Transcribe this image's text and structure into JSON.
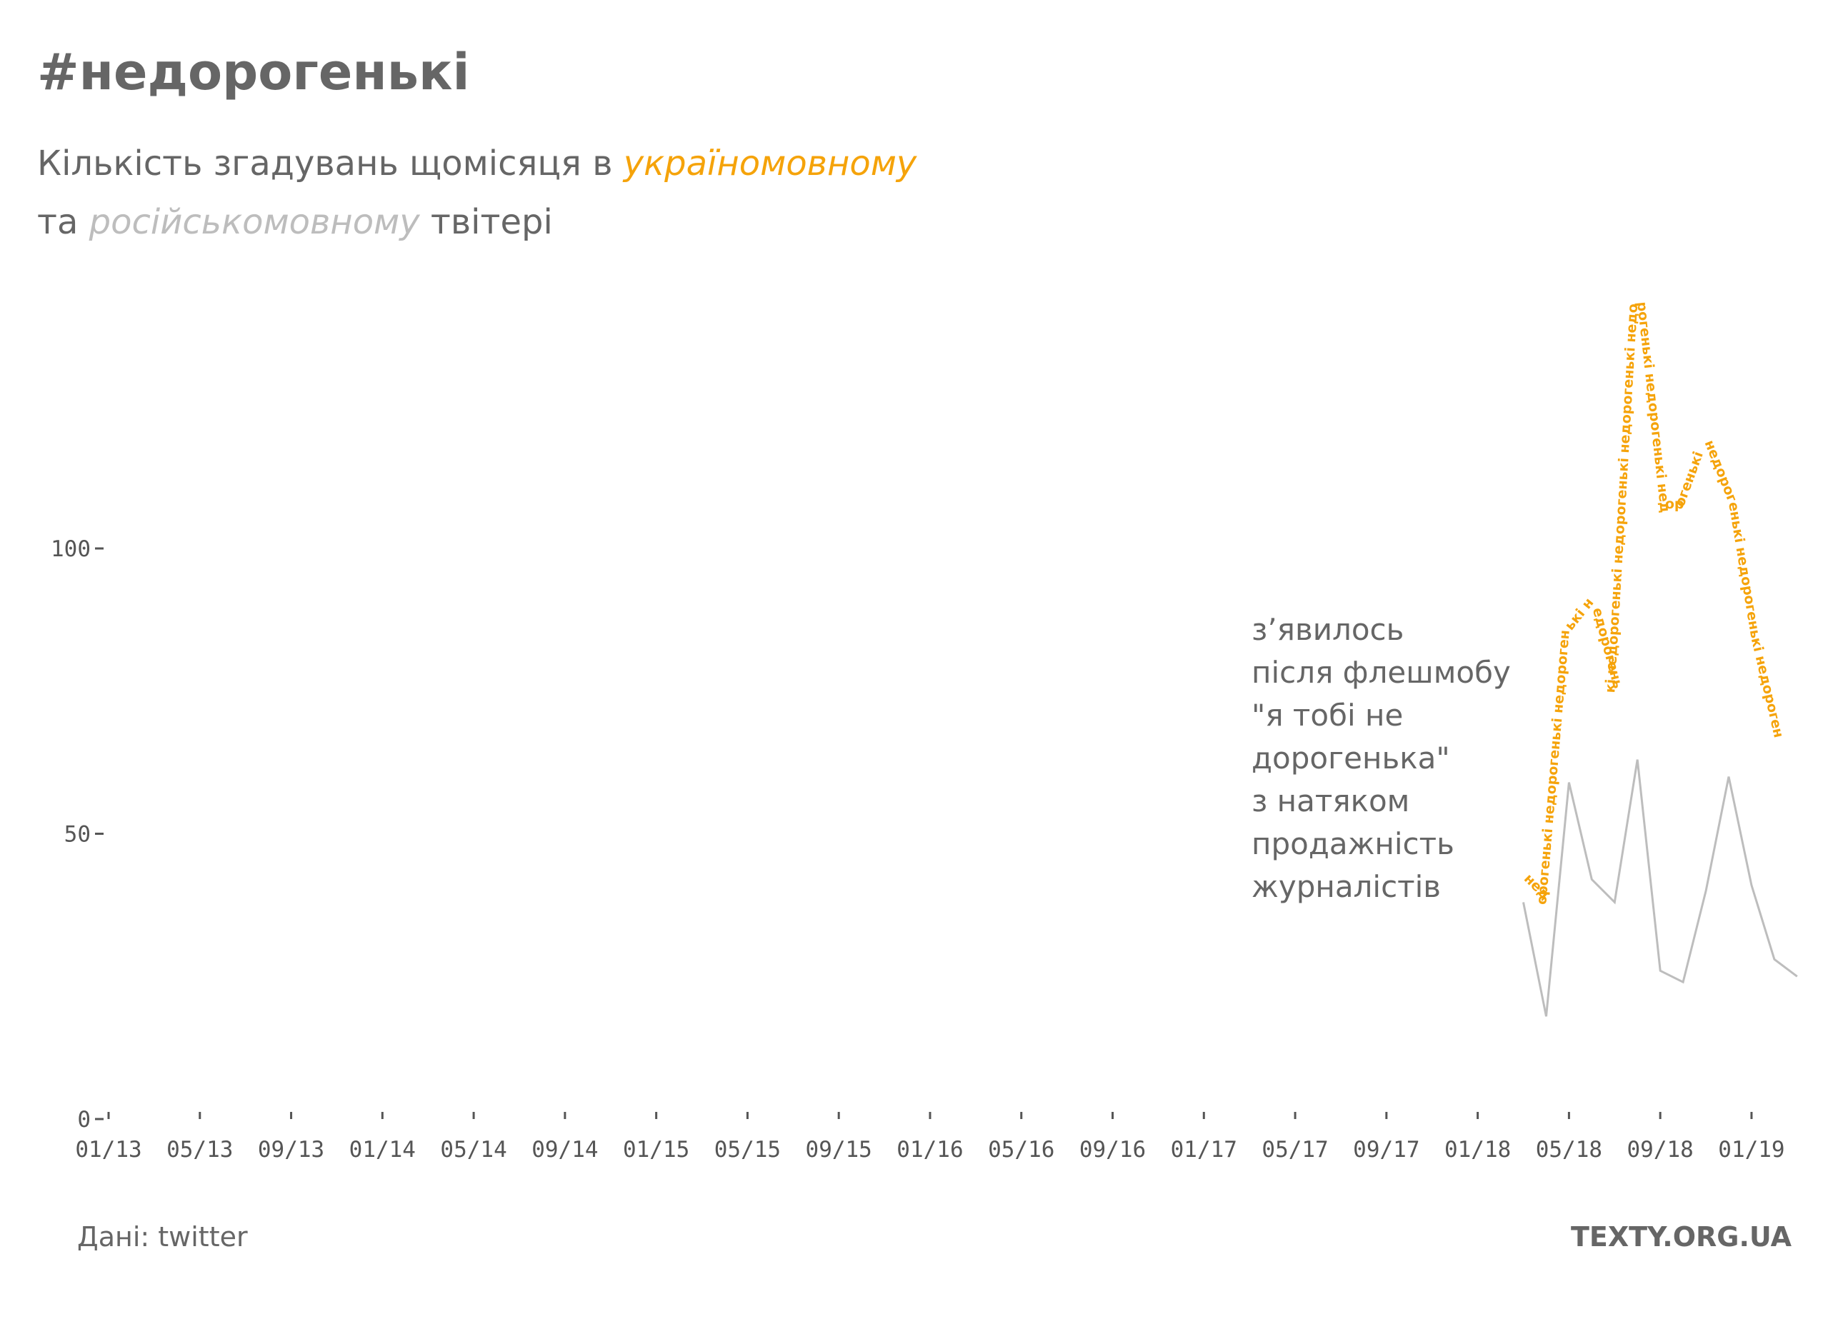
{
  "header": {
    "title": "#недорогенькі",
    "subtitle_part1": "Кількість згадувань щомісяця в ",
    "subtitle_ua": "україномовному",
    "subtitle_part2": "та ",
    "subtitle_ru": "російськомовному",
    "subtitle_part3": " твітері"
  },
  "annotation": {
    "lines": [
      "з’явилось",
      "після флешмобу",
      "\"я тобі не",
      "дорогенька\"",
      "з натяком",
      "продажність",
      "журналістів"
    ]
  },
  "footer": {
    "source": "Дані: twitter",
    "brand": "TEXTY.ORG.UA"
  },
  "colors": {
    "ukrainian": "#f5a30a",
    "russian": "#bdbdbd",
    "text": "#666666",
    "axis": "#555555"
  },
  "chart_data": {
    "type": "line",
    "title": "#недорогенькі",
    "subtitle": "Кількість згадувань щомісяця в україномовному та російськомовному твітері",
    "x_ticks": [
      "01/13",
      "05/13",
      "09/13",
      "01/14",
      "05/14",
      "09/14",
      "01/15",
      "05/15",
      "09/15",
      "01/16",
      "05/16",
      "09/16",
      "01/17",
      "05/17",
      "09/17",
      "01/18",
      "05/18",
      "09/18",
      "01/19"
    ],
    "y_ticks": [
      0,
      50,
      100
    ],
    "ylim": [
      0,
      140
    ],
    "grid": false,
    "legend": "none",
    "label_word": "недорогенькі",
    "series": [
      {
        "name": "україномовному",
        "style": "text-path",
        "x": [
          "2018-03",
          "2018-04",
          "2018-05",
          "2018-06",
          "2018-07",
          "2018-08",
          "2018-09",
          "2018-10",
          "2018-11",
          "2018-12",
          "2019-01",
          "2019-02"
        ],
        "values": [
          42,
          38,
          85,
          90,
          75,
          143,
          107,
          107,
          118,
          108,
          84,
          67
        ]
      },
      {
        "name": "російськомовному",
        "style": "line",
        "x": [
          "2018-03",
          "2018-04",
          "2018-05",
          "2018-06",
          "2018-07",
          "2018-08",
          "2018-09",
          "2018-10",
          "2018-11",
          "2018-12",
          "2019-01",
          "2019-02",
          "2019-03"
        ],
        "values": [
          38,
          18,
          59,
          42,
          38,
          63,
          26,
          24,
          40,
          60,
          41,
          28,
          25
        ]
      }
    ]
  }
}
